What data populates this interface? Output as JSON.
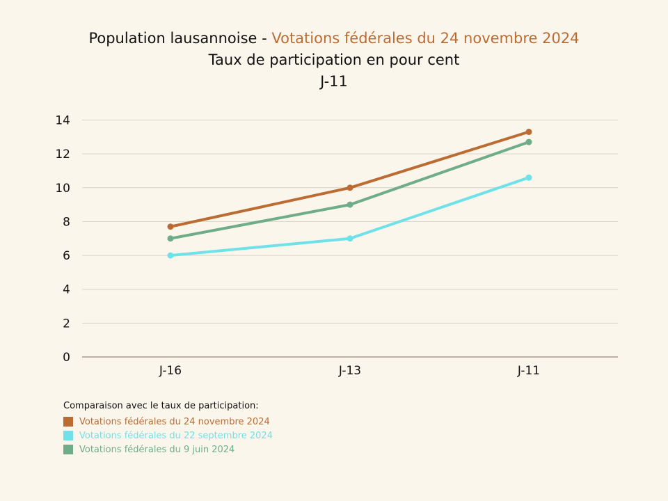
{
  "colors": {
    "background": "#fbf6ec",
    "grid": "#d6d2c9",
    "axis": "#8f8a80",
    "text": "#111111",
    "accent": "#bb6c33"
  },
  "title": {
    "prefix": "Population lausannoise - ",
    "highlight": "Votations fédérales du 24 novembre 2024",
    "line2": "Taux de participation en pour cent",
    "line3": "J-11"
  },
  "chart_data": {
    "type": "line",
    "categories": [
      "J-16",
      "J-13",
      "J-11"
    ],
    "ylim": [
      0,
      14
    ],
    "yticks": [
      0,
      2,
      4,
      6,
      8,
      10,
      12,
      14
    ],
    "grid": true,
    "legend_position": "bottom-left",
    "series": [
      {
        "name": "Votations fédérales du 24 novembre 2024",
        "color": "#bb6c33",
        "values": [
          7.7,
          10.0,
          13.3
        ]
      },
      {
        "name": "Votations fédérales du 22 septembre 2024",
        "color": "#6ee2e8",
        "values": [
          6.0,
          7.0,
          10.6
        ]
      },
      {
        "name": "Votations fédérales du 9 juin 2024",
        "color": "#6fac88",
        "values": [
          7.0,
          9.0,
          12.7
        ]
      }
    ]
  },
  "legend": {
    "heading": "Comparaison avec le taux de participation:"
  }
}
